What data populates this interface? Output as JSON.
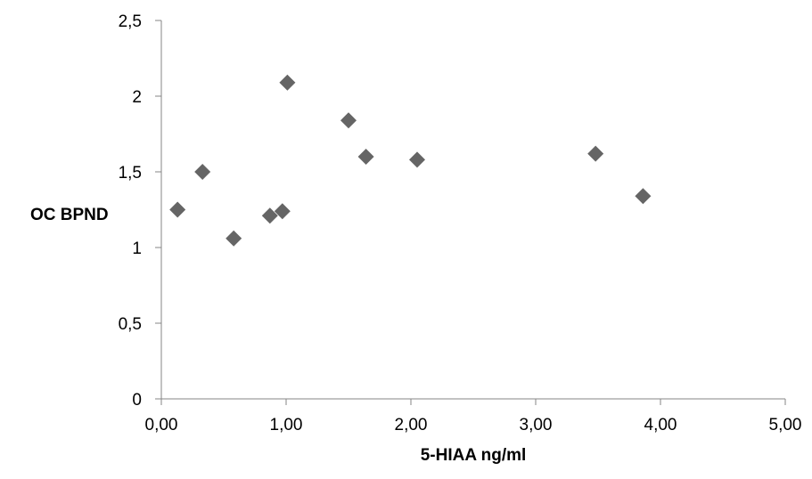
{
  "chart_data": {
    "type": "scatter",
    "title": "",
    "xlabel": "5-HIAA ng/ml",
    "ylabel": "OC BPND",
    "xlim": [
      0,
      5
    ],
    "ylim": [
      0,
      2.5
    ],
    "x_ticks": [
      0,
      1,
      2,
      3,
      4,
      5
    ],
    "x_tick_labels": [
      "0,00",
      "1,00",
      "2,00",
      "3,00",
      "4,00",
      "5,00"
    ],
    "y_ticks": [
      0,
      0.5,
      1,
      1.5,
      2,
      2.5
    ],
    "y_tick_labels": [
      "0",
      "0,5",
      "1",
      "1,5",
      "2",
      "2,5"
    ],
    "grid": false,
    "legend": "none",
    "marker": "diamond",
    "marker_color": "#656565",
    "axis_color": "#868686",
    "series": [
      {
        "points": [
          {
            "x": 0.13,
            "y": 1.25
          },
          {
            "x": 0.33,
            "y": 1.5
          },
          {
            "x": 0.58,
            "y": 1.06
          },
          {
            "x": 0.87,
            "y": 1.21
          },
          {
            "x": 0.97,
            "y": 1.24
          },
          {
            "x": 1.01,
            "y": 2.09
          },
          {
            "x": 1.5,
            "y": 1.84
          },
          {
            "x": 1.64,
            "y": 1.6
          },
          {
            "x": 2.05,
            "y": 1.58
          },
          {
            "x": 3.48,
            "y": 1.62
          },
          {
            "x": 3.86,
            "y": 1.34
          }
        ]
      }
    ]
  }
}
